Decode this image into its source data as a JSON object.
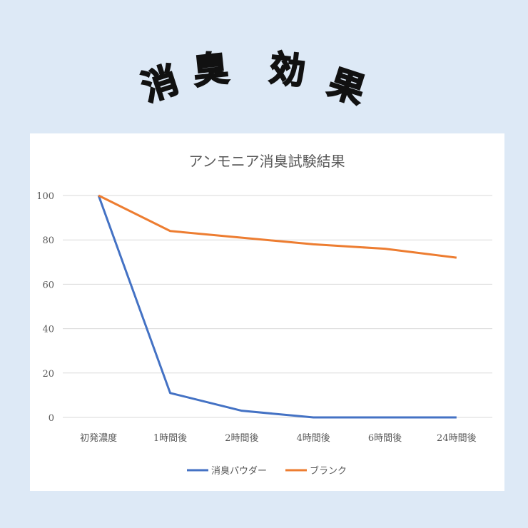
{
  "header": {
    "title_chars": [
      "消",
      "臭",
      "効",
      "果"
    ]
  },
  "colors": {
    "background": "#dde9f6",
    "series1": "#4472c4",
    "series2": "#ed7d31",
    "grid": "#d9d9d9"
  },
  "chart_data": {
    "type": "line",
    "title": "アンモニア消臭試験結果",
    "categories": [
      "初発濃度",
      "1時間後",
      "2時間後",
      "4時間後",
      "6時間後",
      "24時間後"
    ],
    "ylim": [
      0,
      100
    ],
    "yticks": [
      0,
      20,
      40,
      60,
      80,
      100
    ],
    "grid": true,
    "legend": "bottom",
    "series": [
      {
        "name": "消臭パウダー",
        "values": [
          100,
          11,
          3,
          0,
          0,
          0
        ]
      },
      {
        "name": "ブランク",
        "values": [
          100,
          84,
          81,
          78,
          76,
          72
        ]
      }
    ]
  }
}
